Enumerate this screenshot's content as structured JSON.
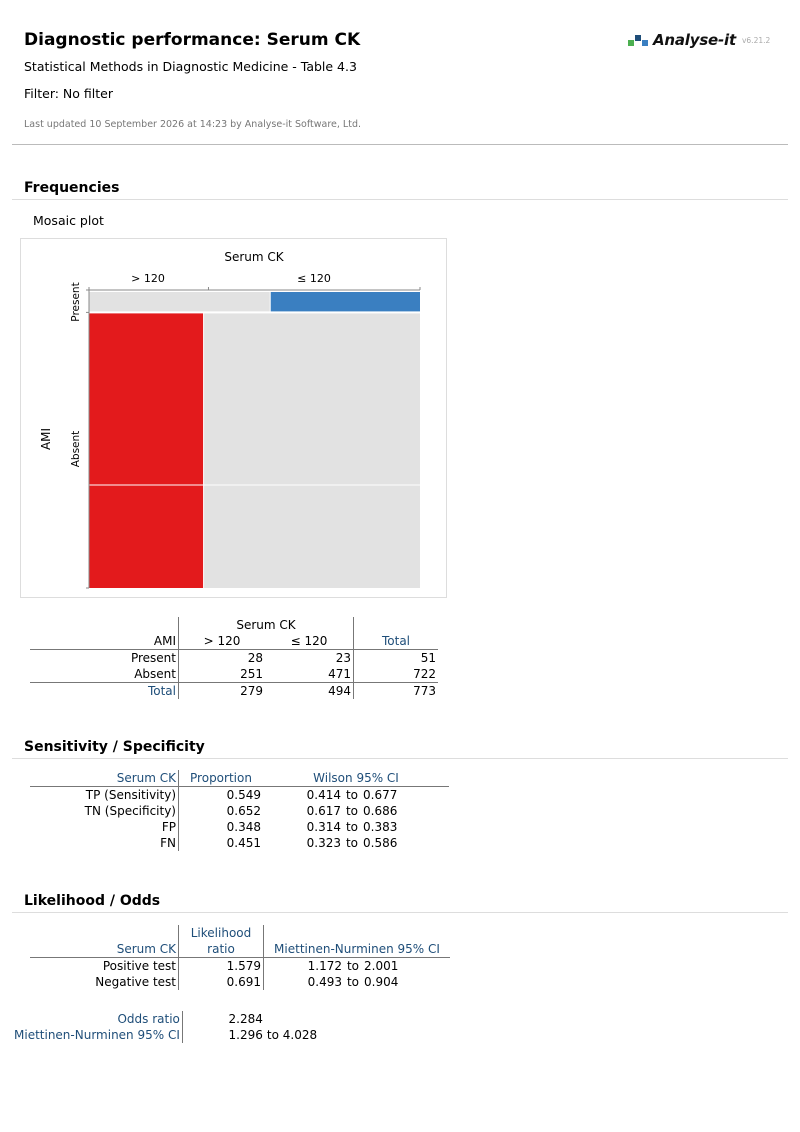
{
  "header": {
    "title": "Diagnostic performance: Serum CK",
    "subtitle": "Statistical Methods in Diagnostic Medicine - Table 4.3",
    "filter": "Filter: No filter",
    "updated": "Last updated 10 September 2026 at 14:23 by Analyse-it Software, Ltd.",
    "brand": "Analyse-it",
    "version": "v6.21.2"
  },
  "colors": {
    "positive": "#e31a1c",
    "negative": "#3a7fc1",
    "neutral": "#e2e2e2",
    "label_blue": "#1f4e79"
  },
  "frequencies": {
    "section_title": "Frequencies",
    "plot_label": "Mosaic plot",
    "table": {
      "group_header": "Serum CK",
      "row_header": "AMI",
      "columns": [
        "> 120",
        "≤ 120",
        "Total"
      ],
      "rows": [
        {
          "label": "Present",
          "values": [
            "28",
            "23",
            "51"
          ]
        },
        {
          "label": "Absent",
          "values": [
            "251",
            "471",
            "722"
          ]
        },
        {
          "label": "Total",
          "values": [
            "279",
            "494",
            "773"
          ]
        }
      ]
    }
  },
  "chart_data": {
    "type": "mosaic",
    "title": "Serum CK",
    "x_categories": [
      "> 120",
      "≤ 120"
    ],
    "y_label": "AMI",
    "y_categories": [
      "Present",
      "Absent"
    ],
    "counts": {
      "Present": [
        28,
        23
      ],
      "Absent": [
        251,
        471
      ]
    },
    "highlight": {
      "Present": [
        false,
        true
      ],
      "Absent": [
        true,
        false
      ]
    }
  },
  "sensitivity": {
    "section_title": "Sensitivity / Specificity",
    "headers": [
      "Serum CK",
      "Proportion",
      "Wilson 95% CI"
    ],
    "rows": [
      {
        "label": "TP (Sensitivity)",
        "value": "0.549",
        "lo": "0.414",
        "to": "to",
        "hi": "0.677"
      },
      {
        "label": "TN (Specificity)",
        "value": "0.652",
        "lo": "0.617",
        "to": "to",
        "hi": "0.686"
      },
      {
        "label": "FP",
        "value": "0.348",
        "lo": "0.314",
        "to": "to",
        "hi": "0.383"
      },
      {
        "label": "FN",
        "value": "0.451",
        "lo": "0.323",
        "to": "to",
        "hi": "0.586"
      }
    ]
  },
  "likelihood": {
    "section_title": "Likelihood / Odds",
    "header_label": "Serum CK",
    "header_ratio_1": "Likelihood",
    "header_ratio_2": "ratio",
    "header_ci": "Miettinen-Nurminen 95% CI",
    "rows": [
      {
        "label": "Positive test",
        "value": "1.579",
        "lo": "1.172",
        "to": "to",
        "hi": "2.001"
      },
      {
        "label": "Negative test",
        "value": "0.691",
        "lo": "0.493",
        "to": "to",
        "hi": "0.904"
      }
    ],
    "odds_label": "Odds ratio",
    "odds_value": "2.284",
    "odds_ci_label": "Miettinen-Nurminen 95% CI",
    "odds_ci_lo": "1.296",
    "odds_ci_to": "to 4.028"
  }
}
